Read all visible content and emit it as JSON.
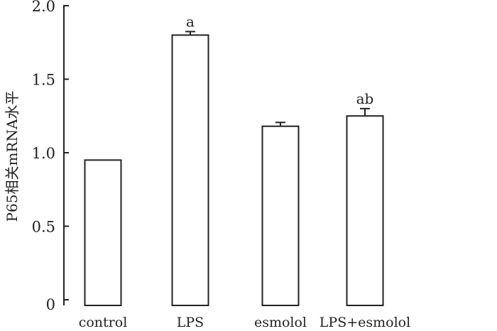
{
  "chart_data": {
    "type": "bar",
    "title": "",
    "xlabel": "",
    "ylabel": "P65相关mRNA水平",
    "ylim": [
      0,
      2.0
    ],
    "yticks": [
      "0",
      "0.5",
      "1.0",
      "1.5",
      "2.0"
    ],
    "ytick_values": [
      0,
      0.5,
      1.0,
      1.5,
      2.0
    ],
    "categories": [
      "control",
      "LPS",
      "esmolol",
      "LPS+esmolol"
    ],
    "values": [
      0.95,
      1.8,
      1.18,
      1.25
    ],
    "errors": [
      0,
      0.024,
      0.026,
      0.05
    ],
    "annotations": [
      "",
      "a",
      "",
      "ab"
    ],
    "bar_fill": "#ffffff",
    "stroke": "#222222"
  }
}
